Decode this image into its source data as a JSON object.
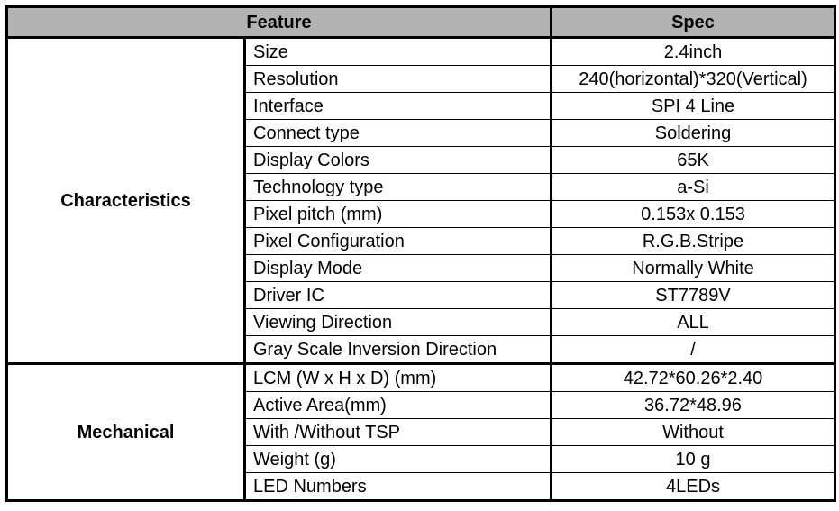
{
  "header": {
    "feature": "Feature",
    "spec": "Spec"
  },
  "groups": [
    {
      "name": "Characteristics",
      "rows": [
        {
          "feature": "Size",
          "spec": "2.4inch"
        },
        {
          "feature": "Resolution",
          "spec": "240(horizontal)*320(Vertical)"
        },
        {
          "feature": "Interface",
          "spec": "SPI 4 Line"
        },
        {
          "feature": "Connect type",
          "spec": "Soldering"
        },
        {
          "feature": "Display Colors",
          "spec": "65K"
        },
        {
          "feature": "Technology type",
          "spec": "a-Si"
        },
        {
          "feature": "Pixel pitch (mm)",
          "spec": "0.153x 0.153"
        },
        {
          "feature": "Pixel Configuration",
          "spec": "R.G.B.Stripe"
        },
        {
          "feature": "Display Mode",
          "spec": "Normally White"
        },
        {
          "feature": "Driver IC",
          "spec": "ST7789V"
        },
        {
          "feature": "Viewing Direction",
          "spec": "ALL"
        },
        {
          "feature": "Gray Scale Inversion Direction",
          "spec": "/"
        }
      ]
    },
    {
      "name": "Mechanical",
      "rows": [
        {
          "feature": "LCM (W x H x D) (mm)",
          "spec": "42.72*60.26*2.40"
        },
        {
          "feature": "Active Area(mm)",
          "spec": "36.72*48.96"
        },
        {
          "feature": "With /Without TSP",
          "spec": "Without"
        },
        {
          "feature": "Weight (g)",
          "spec": "10 g"
        },
        {
          "feature": "LED Numbers",
          "spec": "4LEDs"
        }
      ]
    }
  ]
}
